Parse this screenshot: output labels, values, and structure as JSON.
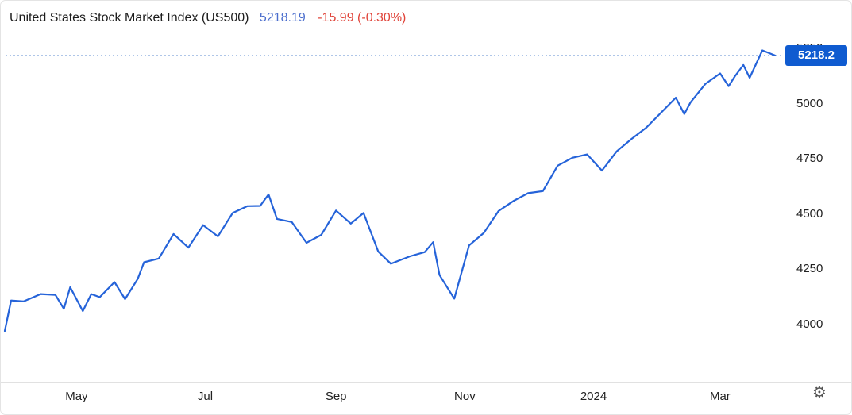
{
  "header": {
    "title": "United States Stock Market Index (US500)",
    "price": "5218.19",
    "change": "-15.99 (-0.30%)"
  },
  "badge": {
    "label": "5218.2"
  },
  "footer": {
    "gear_icon": "⚙"
  },
  "colors": {
    "line": "#2563d9",
    "price_text": "#4a6dcd",
    "change_text": "#e0443a",
    "badge_bg": "#0f5bd0",
    "badge_text": "#ffffff",
    "dotted_line": "#7fa3d9",
    "axis_text": "#222222",
    "axis_line": "#e1e1e1"
  },
  "chart_data": {
    "type": "line",
    "title": "United States Stock Market Index (US500)",
    "series_name": "US500",
    "last_value": 5218.19,
    "last_label": "5218.2",
    "grid": false,
    "legend": false,
    "y_axis_side": "right",
    "xlim": [
      "2023-03-28",
      "2024-03-30"
    ],
    "ylim": [
      3740,
      5340
    ],
    "y_ticks": [
      5250,
      5000,
      4750,
      4500,
      4250,
      4000
    ],
    "x_ticks": [
      {
        "date": "2023-05-01",
        "label": "May"
      },
      {
        "date": "2023-07-01",
        "label": "Jul"
      },
      {
        "date": "2023-09-01",
        "label": "Sep"
      },
      {
        "date": "2023-11-01",
        "label": "Nov"
      },
      {
        "date": "2024-01-01",
        "label": "2024"
      },
      {
        "date": "2024-03-01",
        "label": "Mar"
      }
    ],
    "dates": [
      "2023-03-28",
      "2023-03-31",
      "2023-04-06",
      "2023-04-14",
      "2023-04-21",
      "2023-04-25",
      "2023-04-28",
      "2023-05-04",
      "2023-05-08",
      "2023-05-12",
      "2023-05-19",
      "2023-05-24",
      "2023-05-30",
      "2023-06-02",
      "2023-06-09",
      "2023-06-16",
      "2023-06-23",
      "2023-06-30",
      "2023-07-07",
      "2023-07-14",
      "2023-07-21",
      "2023-07-27",
      "2023-07-31",
      "2023-08-04",
      "2023-08-11",
      "2023-08-18",
      "2023-08-25",
      "2023-09-01",
      "2023-09-08",
      "2023-09-14",
      "2023-09-21",
      "2023-09-27",
      "2023-10-06",
      "2023-10-13",
      "2023-10-17",
      "2023-10-20",
      "2023-10-27",
      "2023-11-03",
      "2023-11-10",
      "2023-11-17",
      "2023-11-24",
      "2023-12-01",
      "2023-12-08",
      "2023-12-15",
      "2023-12-22",
      "2023-12-29",
      "2024-01-05",
      "2024-01-12",
      "2024-01-19",
      "2024-01-26",
      "2024-02-02",
      "2024-02-09",
      "2024-02-13",
      "2024-02-16",
      "2024-02-23",
      "2024-03-01",
      "2024-03-05",
      "2024-03-08",
      "2024-03-12",
      "2024-03-15",
      "2024-03-21",
      "2024-03-27"
    ],
    "values": [
      3971,
      4109,
      4105,
      4138,
      4134,
      4071,
      4169,
      4061,
      4138,
      4124,
      4192,
      4115,
      4206,
      4282,
      4299,
      4410,
      4348,
      4450,
      4399,
      4505,
      4536,
      4537,
      4589,
      4478,
      4464,
      4370,
      4406,
      4516,
      4457,
      4505,
      4330,
      4275,
      4309,
      4328,
      4373,
      4224,
      4117,
      4358,
      4415,
      4514,
      4559,
      4595,
      4604,
      4719,
      4755,
      4770,
      4697,
      4784,
      4840,
      4891,
      4959,
      5027,
      4953,
      5006,
      5089,
      5137,
      5079,
      5124,
      5175,
      5117,
      5241,
      5218.19
    ]
  }
}
